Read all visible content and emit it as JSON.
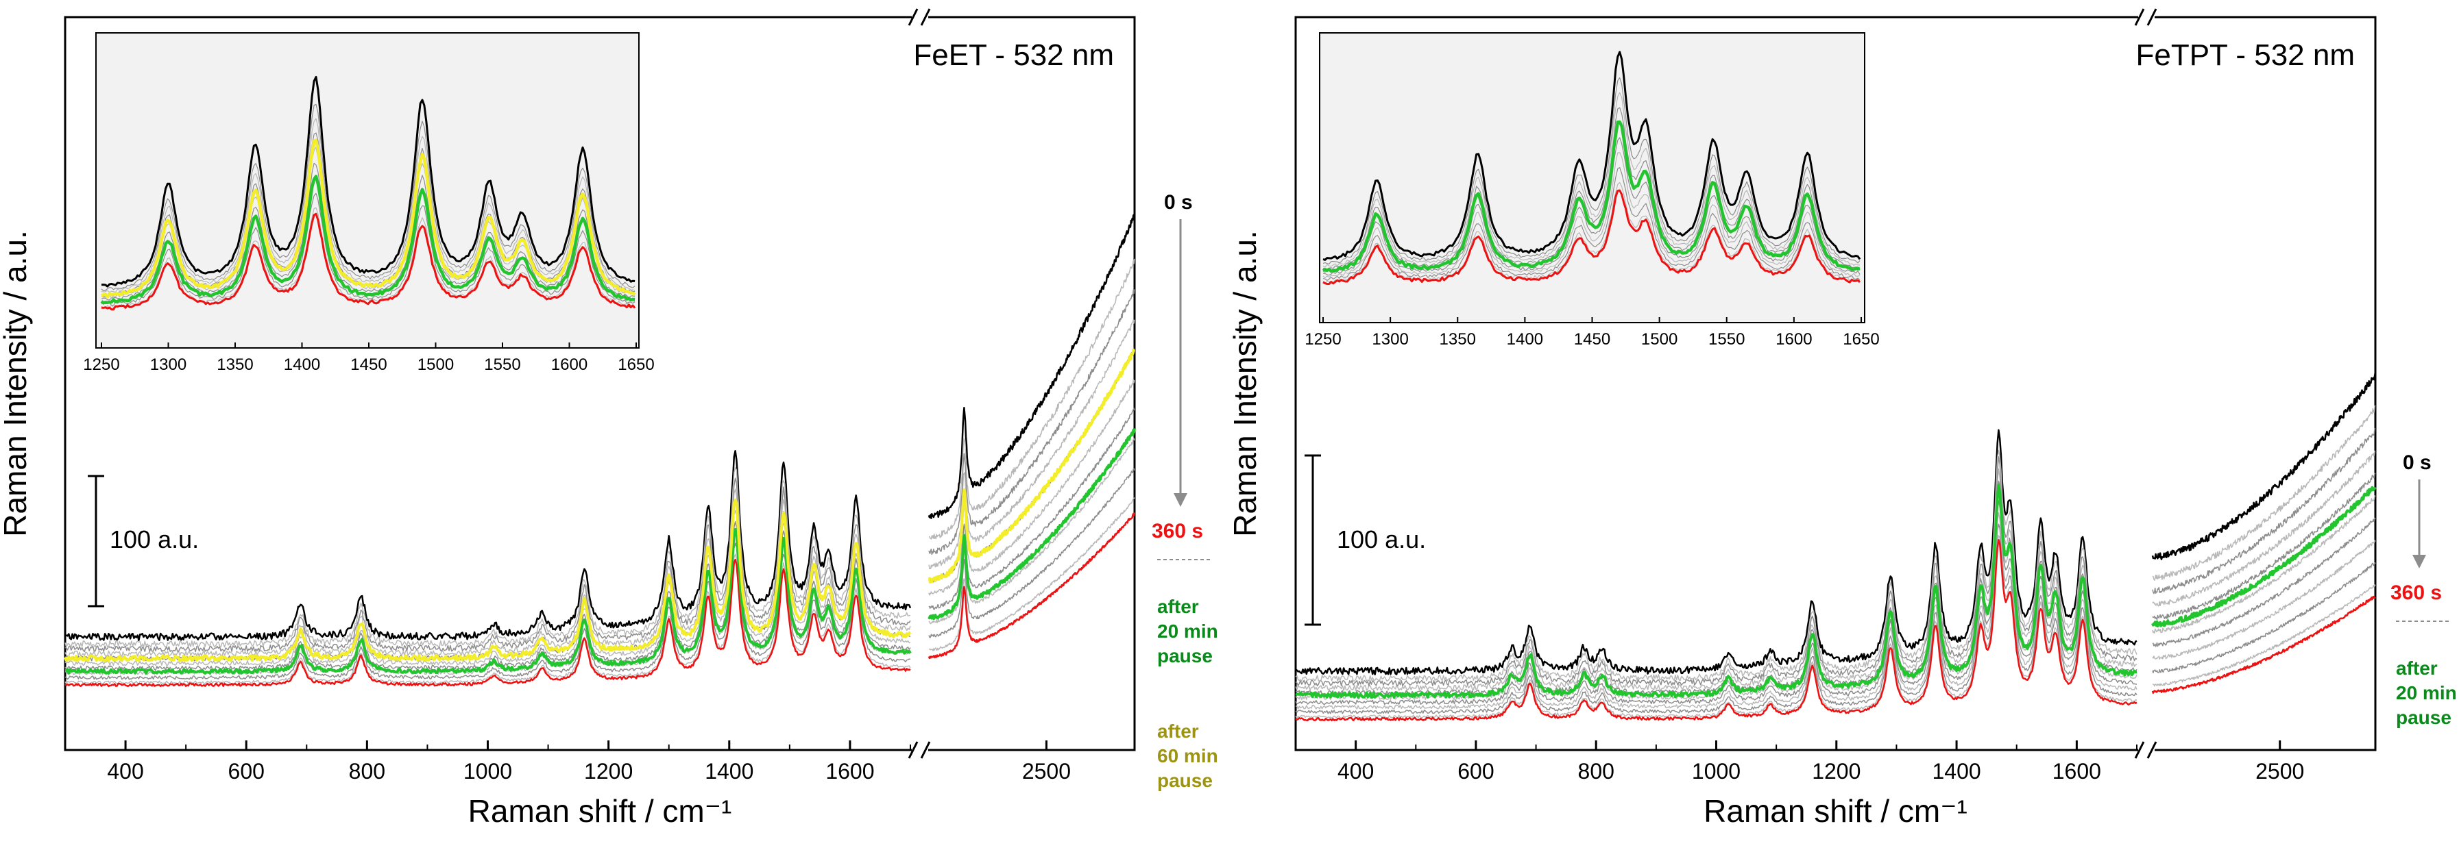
{
  "figure": "Raman time-series spectra, 532 nm excitation",
  "colors": {
    "t0": "#000000",
    "t360": "#ee1111",
    "grey": "#8c8c8c",
    "lightgrey": "#b8b8b8",
    "green20": "#22c52e",
    "yellow60": "#f4ee2a",
    "greenText": "#0a8a1a",
    "oliveText": "#9c9412",
    "arrow": "#8c8c8c",
    "insetBg": "#f2f2f2"
  },
  "chart_data": [
    {
      "type": "line",
      "title": "FeET - 532 nm",
      "xlabel": "Raman shift / cm⁻¹",
      "ylabel": "Raman Intensity / a.u.",
      "scale_bar": "100 a.u.",
      "xlim_low": [
        300,
        1700
      ],
      "xlim_high": [
        2100,
        2800
      ],
      "x_break": [
        1700,
        2100
      ],
      "xticks": [
        {
          "v": 400,
          "label": "400"
        },
        {
          "v": 600,
          "label": "600"
        },
        {
          "v": 800,
          "label": "800"
        },
        {
          "v": 1000,
          "label": "1000"
        },
        {
          "v": 1200,
          "label": "1200"
        },
        {
          "v": 1400,
          "label": "1400"
        },
        {
          "v": 1600,
          "label": "1600"
        },
        {
          "v": 2500,
          "label": "2500"
        }
      ],
      "peaks": [
        [
          690,
          60
        ],
        [
          790,
          75
        ],
        [
          1010,
          22
        ],
        [
          1090,
          35
        ],
        [
          1160,
          110
        ],
        [
          1300,
          150
        ],
        [
          1365,
          200
        ],
        [
          1410,
          300
        ],
        [
          1490,
          270
        ],
        [
          1540,
          140
        ],
        [
          1565,
          90
        ],
        [
          1610,
          200
        ],
        [
          2220,
          165
        ]
      ],
      "series": [
        {
          "name": "0 s",
          "key": "t0",
          "base": 1.0
        },
        {
          "name": "after 60 min pause",
          "key": "yellow60",
          "base": 0.55
        },
        {
          "name": "after 20 min pause",
          "key": "green20",
          "base": 0.28
        },
        {
          "name": "360 s",
          "key": "t360",
          "base": 0.0
        }
      ],
      "annotations": {
        "start": "0 s",
        "end": "360 s",
        "pause1": "after\n20 min\npause",
        "pause2": "after\n60 min\npause"
      },
      "inset": {
        "xlim": [
          1250,
          1650
        ],
        "xticks": [
          "1250",
          "1300",
          "1350",
          "1400",
          "1450",
          "1500",
          "1550",
          "1600",
          "1650"
        ]
      }
    },
    {
      "type": "line",
      "title": "FeTPT - 532 nm",
      "xlabel": "Raman shift / cm⁻¹",
      "ylabel": "Raman Intensity / a.u.",
      "scale_bar": "100 a.u.",
      "xlim_low": [
        300,
        1700
      ],
      "xlim_high": [
        2100,
        2800
      ],
      "x_break": [
        1700,
        2100
      ],
      "xticks": [
        {
          "v": 400,
          "label": "400"
        },
        {
          "v": 600,
          "label": "600"
        },
        {
          "v": 800,
          "label": "800"
        },
        {
          "v": 1000,
          "label": "1000"
        },
        {
          "v": 1200,
          "label": "1200"
        },
        {
          "v": 1400,
          "label": "1400"
        },
        {
          "v": 1600,
          "label": "1600"
        },
        {
          "v": 2500,
          "label": "2500"
        }
      ],
      "peaks": [
        [
          660,
          40
        ],
        [
          690,
          90
        ],
        [
          780,
          45
        ],
        [
          810,
          40
        ],
        [
          1020,
          35
        ],
        [
          1090,
          30
        ],
        [
          1160,
          130
        ],
        [
          1290,
          170
        ],
        [
          1365,
          220
        ],
        [
          1440,
          180
        ],
        [
          1470,
          390
        ],
        [
          1490,
          230
        ],
        [
          1540,
          230
        ],
        [
          1565,
          160
        ],
        [
          1610,
          220
        ]
      ],
      "series": [
        {
          "name": "0 s",
          "key": "t0",
          "base": 1.0
        },
        {
          "name": "after 20 min pause",
          "key": "green20",
          "base": 0.5
        },
        {
          "name": "360 s",
          "key": "t360",
          "base": 0.0
        }
      ],
      "annotations": {
        "start": "0 s",
        "end": "360 s",
        "pause1": "after\n20 min\npause"
      },
      "inset": {
        "xlim": [
          1250,
          1650
        ],
        "xticks": [
          "1250",
          "1300",
          "1350",
          "1400",
          "1450",
          "1500",
          "1550",
          "1600",
          "1650"
        ]
      }
    }
  ]
}
